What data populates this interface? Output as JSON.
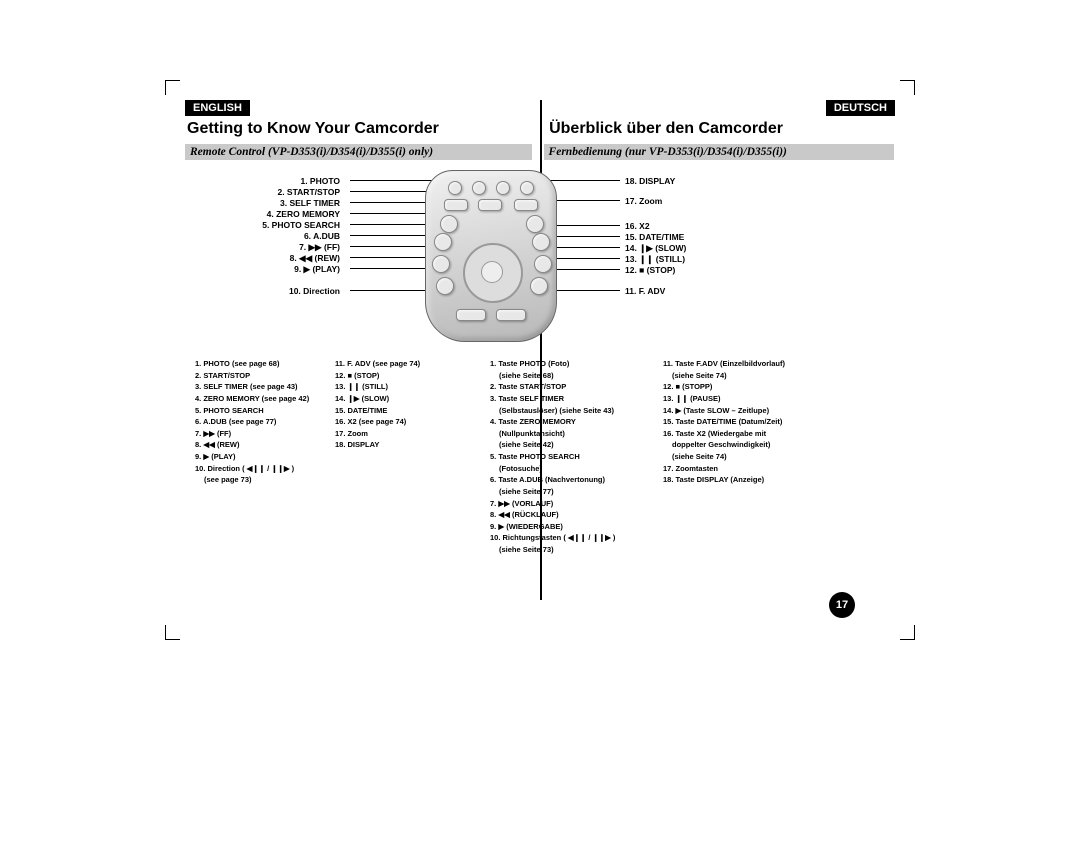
{
  "lang_left": "ENGLISH",
  "lang_right": "DEUTSCH",
  "title_left": "Getting to Know Your Camcorder",
  "title_right": "Überblick über den Camcorder",
  "subtitle_left": "Remote Control (VP-D353(i)/D354(i)/D355(i) only)",
  "subtitle_right": "Fernbedienung (nur VP-D353(i)/D354(i)/D355(i))",
  "page_number": "17",
  "diagram_labels_left": [
    "1. PHOTO",
    "2. START/STOP",
    "3. SELF TIMER",
    "4. ZERO MEMORY",
    "5. PHOTO SEARCH",
    "6. A.DUB",
    "7. ▶▶ (FF)",
    "8. ◀◀ (REW)",
    "9. ▶ (PLAY)",
    "10. Direction"
  ],
  "diagram_labels_right": [
    "18. DISPLAY",
    "17. Zoom",
    "16. X2",
    "15. DATE/TIME",
    "14. ❙▶ (SLOW)",
    "13. ❙❙ (STILL)",
    "12. ■ (STOP)",
    "11. F. ADV"
  ],
  "legend_en_col1": [
    "1. PHOTO (see page 68)",
    "2. START/STOP",
    "3. SELF TIMER (see page 43)",
    "4. ZERO MEMORY (see page 42)",
    "5. PHOTO SEARCH",
    "6. A.DUB (see page 77)",
    "7. ▶▶ (FF)",
    "8. ◀◀ (REW)",
    "9. ▶ (PLAY)",
    "10. Direction ( ◀❙❙ / ❙❙▶ )",
    "      (see page 73)"
  ],
  "legend_en_col2": [
    "11. F. ADV  (see page 74)",
    "12. ■ (STOP)",
    "13. ❙❙ (STILL)",
    "14. ❙▶ (SLOW)",
    "15. DATE/TIME",
    "16. X2 (see page 74)",
    "17. Zoom",
    "18. DISPLAY"
  ],
  "legend_de_col1": [
    "1. Taste PHOTO (Foto)",
    "    (siehe Seite 68)",
    "2. Taste START/STOP",
    "3. Taste SELF TIMER",
    "    (Selbstauslöser) (siehe Seite 43)",
    "4. Taste ZERO MEMORY",
    "    (Nullpunktansicht)",
    "    (siehe Seite 42)",
    "5. Taste PHOTO SEARCH",
    "    (Fotosuche)",
    "6. Taste A.DUB (Nachvertonung)",
    "    (siehe Seite 77)",
    "7. ▶▶ (VORLAUF)",
    "8. ◀◀ (RÜCKLAUF)",
    "9. ▶ (WIEDERGABE)",
    "10. Richtungstasten ( ◀❙❙ / ❙❙▶ )",
    "     (siehe Seite 73)"
  ],
  "legend_de_col2": [
    "11. Taste F.ADV (Einzelbildvorlauf)",
    "     (siehe Seite 74)",
    "12. ■ (STOPP)",
    "13. ❙❙ (PAUSE)",
    "14. ▶ (Taste SLOW – Zeitlupe)",
    "15. Taste DATE/TIME (Datum/Zeit)",
    "16. Taste X2 (Wiedergabe mit",
    "     doppelter Geschwindigkeit)",
    "     (siehe Seite 74)",
    "17. Zoomtasten",
    "18. Taste DISPLAY (Anzeige)"
  ]
}
